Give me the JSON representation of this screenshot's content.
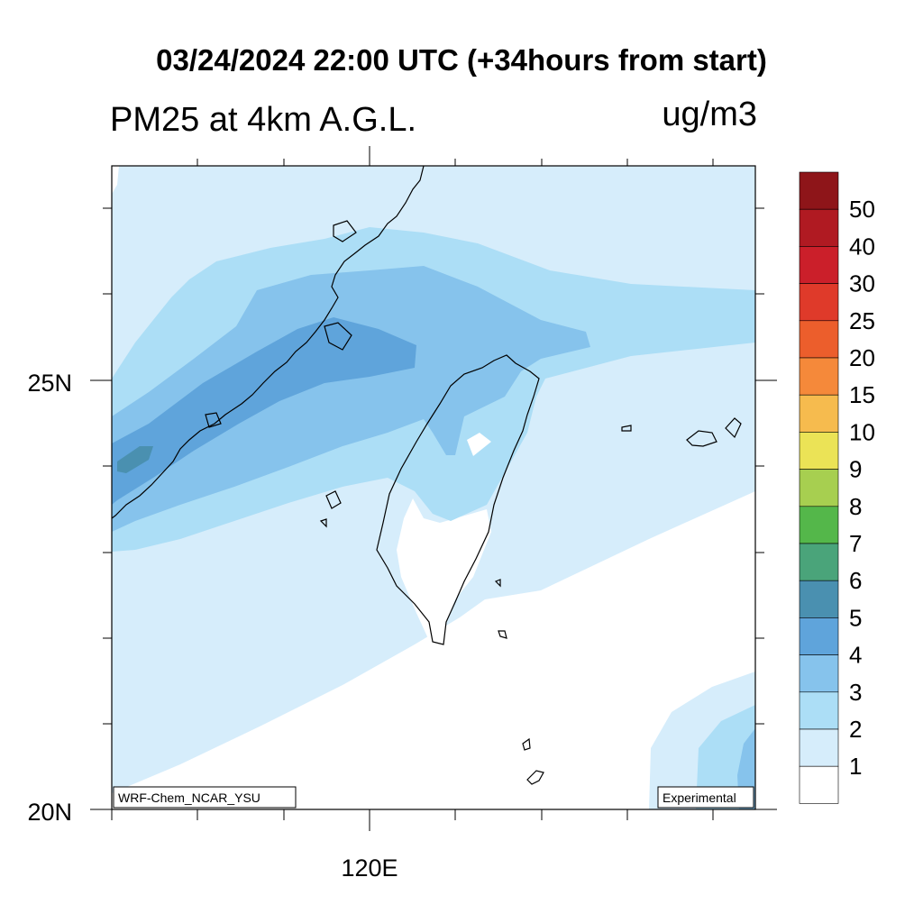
{
  "header": {
    "title": "03/24/2024 22:00 UTC (+34hours from start)",
    "variable": "PM25 at 4km A.G.L.",
    "units": "ug/m3"
  },
  "map": {
    "lat_labels": [
      "25N",
      "20N"
    ],
    "lon_labels": [
      "120E"
    ],
    "model_tag": "WRF-Chem_NCAR_YSU",
    "status_tag": "Experimental"
  },
  "legend": {
    "levels": [
      "1",
      "2",
      "3",
      "4",
      "5",
      "6",
      "7",
      "8",
      "9",
      "10",
      "15",
      "20",
      "25",
      "30",
      "40",
      "50"
    ],
    "colors": [
      "#ffffff",
      "#d6edfb",
      "#acdef6",
      "#86c3ec",
      "#5fa4db",
      "#4a90b0",
      "#4aa47a",
      "#54b74a",
      "#a7cf50",
      "#ebe356",
      "#f6bb4e",
      "#f5893a",
      "#ec5e2c",
      "#df3a2a",
      "#cb1f2a",
      "#b01a22",
      "#8e1519"
    ]
  }
}
